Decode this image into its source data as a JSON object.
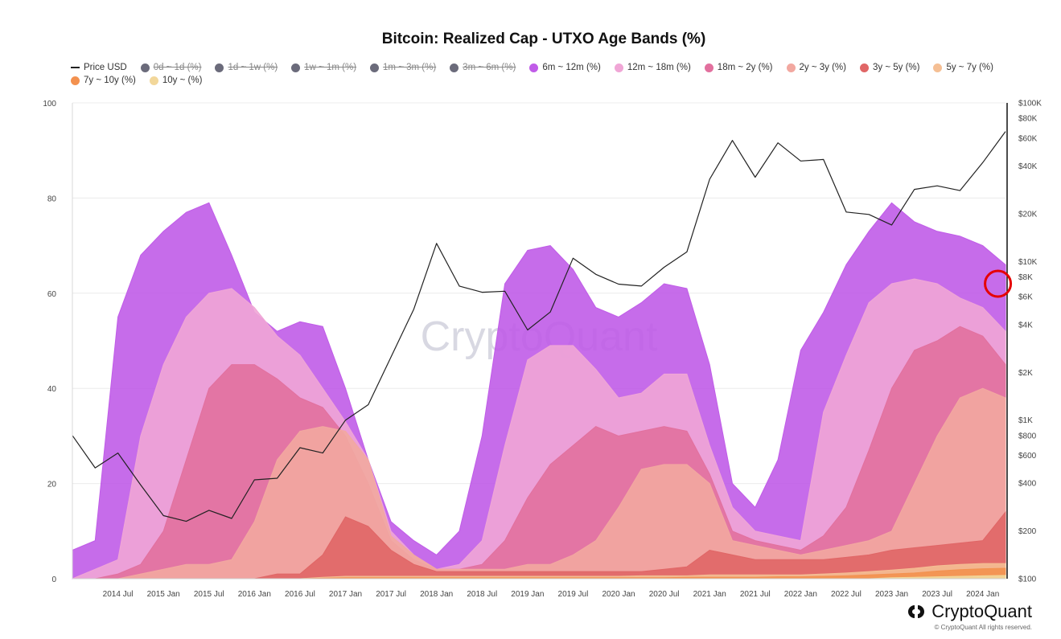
{
  "chart_data": {
    "type": "area",
    "title": "Bitcoin: Realized Cap - UTXO Age Bands (%)",
    "xlabel": "",
    "ylabel": "",
    "ylim": [
      0,
      100
    ],
    "y_ticks": [
      0,
      20,
      40,
      60,
      80,
      100
    ],
    "y2_scale": "log",
    "y2lim": [
      100,
      100000
    ],
    "y2_ticks": [
      {
        "value": 100000,
        "label": "$100K"
      },
      {
        "value": 80000,
        "label": "$80K"
      },
      {
        "value": 60000,
        "label": "$60K"
      },
      {
        "value": 40000,
        "label": "$40K"
      },
      {
        "value": 20000,
        "label": "$20K"
      },
      {
        "value": 10000,
        "label": "$10K"
      },
      {
        "value": 8000,
        "label": "$8K"
      },
      {
        "value": 6000,
        "label": "$6K"
      },
      {
        "value": 4000,
        "label": "$4K"
      },
      {
        "value": 2000,
        "label": "$2K"
      },
      {
        "value": 1000,
        "label": "$1K"
      },
      {
        "value": 800,
        "label": "$800"
      },
      {
        "value": 600,
        "label": "$600"
      },
      {
        "value": 400,
        "label": "$400"
      },
      {
        "value": 200,
        "label": "$200"
      },
      {
        "value": 100,
        "label": "$100"
      }
    ],
    "x_range": [
      "2014-01",
      "2024-04"
    ],
    "x_ticks": [
      {
        "date": "2014-07",
        "label": "2014 Jul"
      },
      {
        "date": "2015-01",
        "label": "2015 Jan"
      },
      {
        "date": "2015-07",
        "label": "2015 Jul"
      },
      {
        "date": "2016-01",
        "label": "2016 Jan"
      },
      {
        "date": "2016-07",
        "label": "2016 Jul"
      },
      {
        "date": "2017-01",
        "label": "2017 Jan"
      },
      {
        "date": "2017-07",
        "label": "2017 Jul"
      },
      {
        "date": "2018-01",
        "label": "2018 Jan"
      },
      {
        "date": "2018-07",
        "label": "2018 Jul"
      },
      {
        "date": "2019-01",
        "label": "2019 Jan"
      },
      {
        "date": "2019-07",
        "label": "2019 Jul"
      },
      {
        "date": "2020-01",
        "label": "2020 Jan"
      },
      {
        "date": "2020-07",
        "label": "2020 Jul"
      },
      {
        "date": "2021-01",
        "label": "2021 Jan"
      },
      {
        "date": "2021-07",
        "label": "2021 Jul"
      },
      {
        "date": "2022-01",
        "label": "2022 Jan"
      },
      {
        "date": "2022-07",
        "label": "2022 Jul"
      },
      {
        "date": "2023-01",
        "label": "2023 Jan"
      },
      {
        "date": "2023-07",
        "label": "2023 Jul"
      },
      {
        "date": "2024-01",
        "label": "2024 Jan"
      }
    ],
    "grid": true,
    "legend_position": "top",
    "legend": [
      {
        "label": "Price USD",
        "type": "line",
        "color": "#222222",
        "enabled": true
      },
      {
        "label": "0d ~ 1d (%)",
        "type": "dot",
        "color": "#6b6b7b",
        "enabled": false
      },
      {
        "label": "1d ~ 1w (%)",
        "type": "dot",
        "color": "#6b6b7b",
        "enabled": false
      },
      {
        "label": "1w ~ 1m (%)",
        "type": "dot",
        "color": "#6b6b7b",
        "enabled": false
      },
      {
        "label": "1m ~ 3m (%)",
        "type": "dot",
        "color": "#6b6b7b",
        "enabled": false
      },
      {
        "label": "3m ~ 6m (%)",
        "type": "dot",
        "color": "#6b6b7b",
        "enabled": false
      },
      {
        "label": "6m ~ 12m (%)",
        "type": "dot",
        "color": "#c05ce8",
        "enabled": true
      },
      {
        "label": "12m ~ 18m (%)",
        "type": "dot",
        "color": "#f0a6d6",
        "enabled": true
      },
      {
        "label": "18m ~ 2y (%)",
        "type": "dot",
        "color": "#e2709e",
        "enabled": true
      },
      {
        "label": "2y ~ 3y (%)",
        "type": "dot",
        "color": "#f2a8a0",
        "enabled": true
      },
      {
        "label": "3y ~ 5y (%)",
        "type": "dot",
        "color": "#e06666",
        "enabled": true
      },
      {
        "label": "5y ~ 7y (%)",
        "type": "dot",
        "color": "#f5bf94",
        "enabled": true
      },
      {
        "label": "7y ~ 10y (%)",
        "type": "dot",
        "color": "#f3914f",
        "enabled": true
      },
      {
        "label": "10y ~ (%)",
        "type": "dot",
        "color": "#f2d79a",
        "enabled": true
      }
    ],
    "x": [
      "2014-01",
      "2014-04",
      "2014-07",
      "2014-10",
      "2015-01",
      "2015-04",
      "2015-07",
      "2015-10",
      "2016-01",
      "2016-04",
      "2016-07",
      "2016-10",
      "2017-01",
      "2017-04",
      "2017-07",
      "2017-10",
      "2018-01",
      "2018-04",
      "2018-07",
      "2018-10",
      "2019-01",
      "2019-04",
      "2019-07",
      "2019-10",
      "2020-01",
      "2020-04",
      "2020-07",
      "2020-10",
      "2021-01",
      "2021-04",
      "2021-07",
      "2021-10",
      "2022-01",
      "2022-04",
      "2022-07",
      "2022-10",
      "2023-01",
      "2023-04",
      "2023-07",
      "2023-10",
      "2024-01",
      "2024-04"
    ],
    "series_note": "cumulative stacked percentage tops per band",
    "series": [
      {
        "name": "6m ~ 12m (%)",
        "color": "#c05ce8",
        "values": [
          6,
          8,
          55,
          68,
          73,
          77,
          79,
          68,
          56,
          52,
          54,
          53,
          40,
          25,
          12,
          8,
          5,
          10,
          30,
          62,
          69,
          70,
          65,
          57,
          55,
          58,
          62,
          61,
          45,
          20,
          15,
          25,
          48,
          56,
          66,
          73,
          79,
          75,
          73,
          72,
          70,
          66
        ]
      },
      {
        "name": "12m ~ 18m (%)",
        "color": "#f0a6d6",
        "values": [
          0,
          2,
          4,
          30,
          45,
          55,
          60,
          61,
          57,
          51,
          47,
          40,
          33,
          25,
          10,
          5,
          2,
          3,
          8,
          28,
          46,
          49,
          49,
          44,
          38,
          39,
          43,
          43,
          28,
          15,
          10,
          9,
          8,
          35,
          47,
          58,
          62,
          63,
          62,
          59,
          57,
          52
        ]
      },
      {
        "name": "18m ~ 2y (%)",
        "color": "#e2709e",
        "values": [
          0,
          0,
          1,
          3,
          10,
          25,
          40,
          45,
          45,
          42,
          38,
          36,
          30,
          20,
          8,
          4,
          2,
          2,
          3,
          8,
          17,
          24,
          28,
          32,
          30,
          31,
          32,
          31,
          22,
          10,
          8,
          7,
          6,
          9,
          15,
          27,
          40,
          48,
          50,
          53,
          51,
          45
        ]
      },
      {
        "name": "2y ~ 3y (%)",
        "color": "#f2a8a0",
        "values": [
          0,
          0,
          0,
          1,
          2,
          3,
          3,
          4,
          12,
          25,
          31,
          32,
          31,
          25,
          9,
          5,
          2,
          2,
          2,
          2,
          3,
          3,
          5,
          8,
          15,
          23,
          24,
          24,
          20,
          8,
          7,
          6,
          5,
          6,
          7,
          8,
          10,
          20,
          30,
          38,
          40,
          38
        ]
      },
      {
        "name": "3y ~ 5y (%)",
        "color": "#e06666",
        "values": [
          0,
          0,
          0,
          0,
          0,
          0,
          0,
          0,
          0,
          1,
          1,
          5,
          13,
          11,
          6,
          3,
          1.5,
          1.5,
          1.5,
          1.5,
          1.5,
          1.5,
          1.5,
          1.5,
          1.5,
          1.5,
          2,
          2.5,
          6,
          5,
          4,
          4,
          4,
          4,
          4.5,
          5,
          6,
          6.5,
          7,
          7.5,
          8,
          14
        ]
      },
      {
        "name": "5y ~ 7y (%)",
        "color": "#f5bf94",
        "values": [
          0,
          0,
          0,
          0,
          0,
          0,
          0,
          0,
          0,
          0,
          0,
          0.3,
          0.5,
          0.5,
          0.5,
          0.5,
          0.5,
          0.5,
          0.5,
          0.5,
          0.5,
          0.5,
          0.5,
          0.5,
          0.5,
          0.6,
          0.6,
          0.6,
          0.8,
          0.8,
          0.8,
          0.8,
          0.8,
          1,
          1.2,
          1.5,
          1.8,
          2.2,
          2.7,
          3,
          3.2,
          3.2
        ]
      },
      {
        "name": "7y ~ 10y (%)",
        "color": "#f3914f",
        "values": [
          0,
          0,
          0,
          0,
          0,
          0,
          0,
          0,
          0,
          0,
          0,
          0.1,
          0.2,
          0.2,
          0.2,
          0.2,
          0.2,
          0.2,
          0.2,
          0.2,
          0.2,
          0.2,
          0.2,
          0.2,
          0.2,
          0.2,
          0.2,
          0.3,
          0.3,
          0.3,
          0.3,
          0.4,
          0.4,
          0.5,
          0.6,
          0.8,
          1,
          1.2,
          1.6,
          1.9,
          2.1,
          2.2
        ]
      },
      {
        "name": "10y ~ (%)",
        "color": "#f2d79a",
        "values": [
          0,
          0,
          0,
          0,
          0,
          0,
          0,
          0,
          0,
          0,
          0,
          0,
          0,
          0,
          0,
          0,
          0,
          0,
          0,
          0,
          0,
          0,
          0,
          0,
          0,
          0,
          0,
          0,
          0,
          0,
          0,
          0,
          0,
          0,
          0,
          0,
          0.2,
          0.3,
          0.4,
          0.5,
          0.6,
          0.7
        ]
      }
    ],
    "price_series": {
      "name": "Price USD",
      "color": "#222222",
      "axis": "right",
      "values": [
        800,
        500,
        620,
        390,
        250,
        230,
        270,
        240,
        420,
        430,
        670,
        620,
        1000,
        1250,
        2500,
        5000,
        13000,
        7000,
        6400,
        6500,
        3700,
        4800,
        10500,
        8300,
        7200,
        7000,
        9200,
        11500,
        33000,
        58000,
        34000,
        56000,
        43000,
        44000,
        20500,
        19800,
        17000,
        28500,
        30000,
        28000,
        42000,
        66000
      ]
    },
    "annotations": [
      {
        "type": "circle",
        "color": "#e60000",
        "near": {
          "x": "2024-03",
          "y": 62
        }
      }
    ]
  },
  "brand": {
    "watermark": "CryptoQuant",
    "logo_text": "CryptoQuant",
    "copyright": "© CryptoQuant All rights reserved."
  }
}
